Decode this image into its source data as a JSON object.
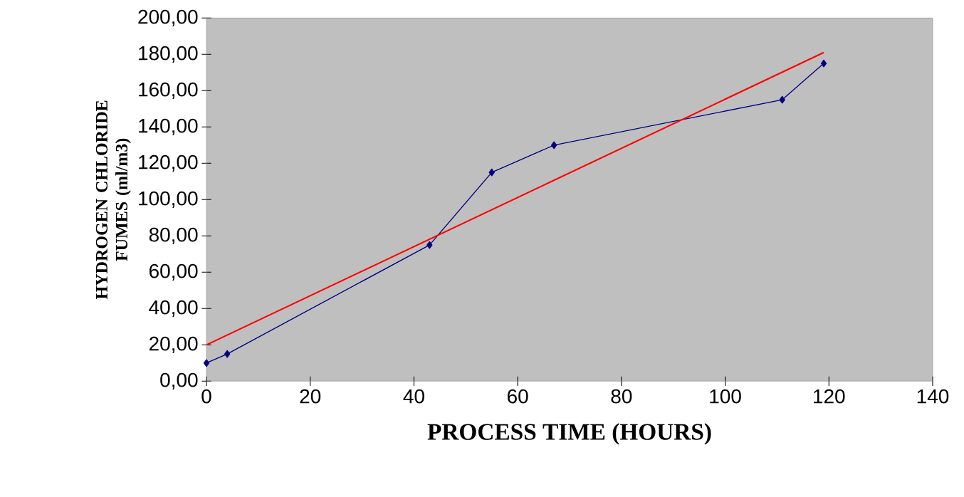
{
  "chart_data": {
    "type": "line",
    "xlabel": "PROCESS TIME (HOURS)",
    "ylabel": "HYDROGEN CHLORIDE FUMES (ml/m3)",
    "xlim": [
      0,
      140
    ],
    "xticks": [
      0,
      20,
      40,
      60,
      80,
      100,
      120,
      140
    ],
    "ylim": [
      0,
      200
    ],
    "yticks": [
      {
        "value": 0,
        "label": "0,00"
      },
      {
        "value": 20,
        "label": "20,00"
      },
      {
        "value": 40,
        "label": "40,00"
      },
      {
        "value": 60,
        "label": "60,00"
      },
      {
        "value": 80,
        "label": "80,00"
      },
      {
        "value": 100,
        "label": "100,00"
      },
      {
        "value": 120,
        "label": "120,00"
      },
      {
        "value": 140,
        "label": "140,00"
      },
      {
        "value": 160,
        "label": "160,00"
      },
      {
        "value": 180,
        "label": "180,00"
      },
      {
        "value": 200,
        "label": "200,00"
      }
    ],
    "grid": false,
    "marker": "diamond",
    "series": [
      {
        "color": "#000080",
        "x": [
          0,
          4,
          43,
          55,
          67,
          111,
          119
        ],
        "values": [
          10,
          15,
          75,
          115,
          130,
          155,
          175
        ]
      },
      {
        "color": "#ff0000",
        "marker": "none",
        "x": [
          0,
          119
        ],
        "values": [
          20,
          181
        ]
      }
    ]
  }
}
